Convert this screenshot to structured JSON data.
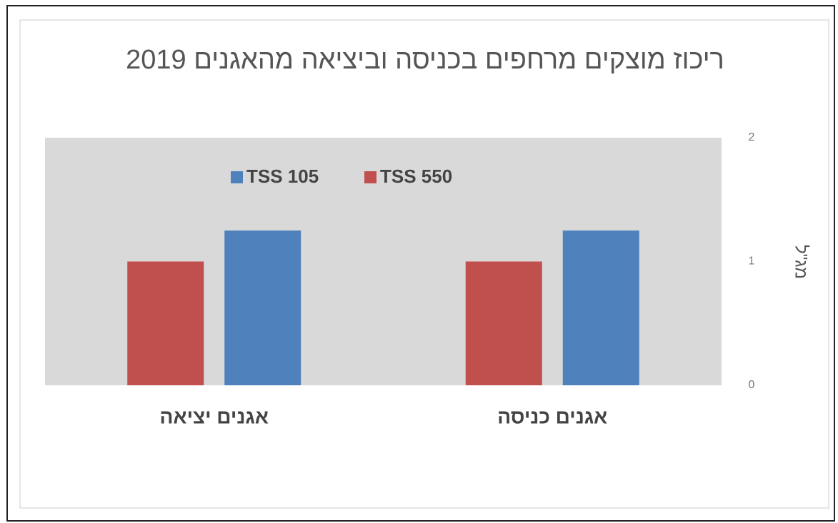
{
  "chart_data": {
    "type": "bar",
    "title": "ריכוז מוצקים מרחפים בכניסה וביציאה מהאגנים 2019",
    "y_label": "מג\"ל",
    "categories": [
      "אגנים כניסה",
      "אגנים יציאה"
    ],
    "series": [
      {
        "name": "TSS 105",
        "color": "#4f81bd",
        "values": [
          1.25,
          1.25
        ]
      },
      {
        "name": "TSS 550",
        "color": "#c0504d",
        "values": [
          1.0,
          1.0
        ]
      }
    ],
    "ylim": [
      0,
      2
    ],
    "yticks": [
      0,
      1,
      2
    ]
  }
}
